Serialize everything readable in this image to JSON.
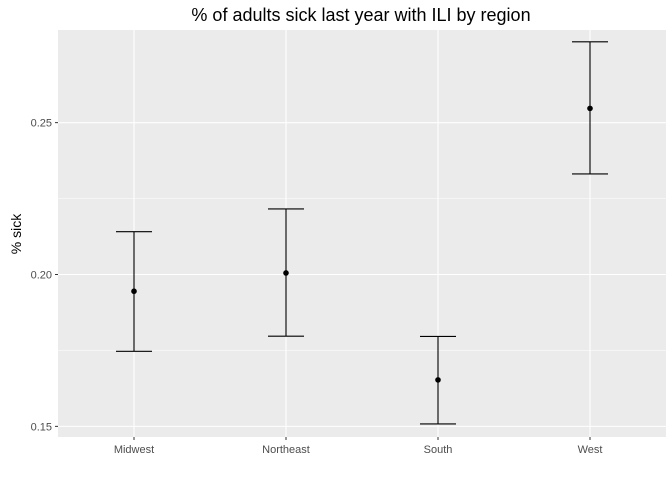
{
  "chart_data": {
    "type": "scatter",
    "title": "% of adults sick last year with ILI by region",
    "xlabel": "",
    "ylabel": "% sick",
    "categories": [
      "Midwest",
      "Northeast",
      "South",
      "West"
    ],
    "series": [
      {
        "values": [
          0.1945,
          0.2005,
          0.1653,
          0.2547
        ],
        "lower": [
          0.1747,
          0.1797,
          0.1508,
          0.2331
        ],
        "upper": [
          0.2141,
          0.2216,
          0.1796,
          0.2766
        ]
      }
    ],
    "yticks": [
      0.15,
      0.2,
      0.25
    ],
    "ytick_labels": [
      "0.15",
      "0.20",
      "0.25"
    ],
    "ylim": [
      0.1465,
      0.2805
    ],
    "grid": true,
    "colors": {
      "panel": "#ebebeb",
      "grid_major": "#ffffff",
      "marks": "#000000",
      "tick_text": "#4d4d4d"
    }
  }
}
